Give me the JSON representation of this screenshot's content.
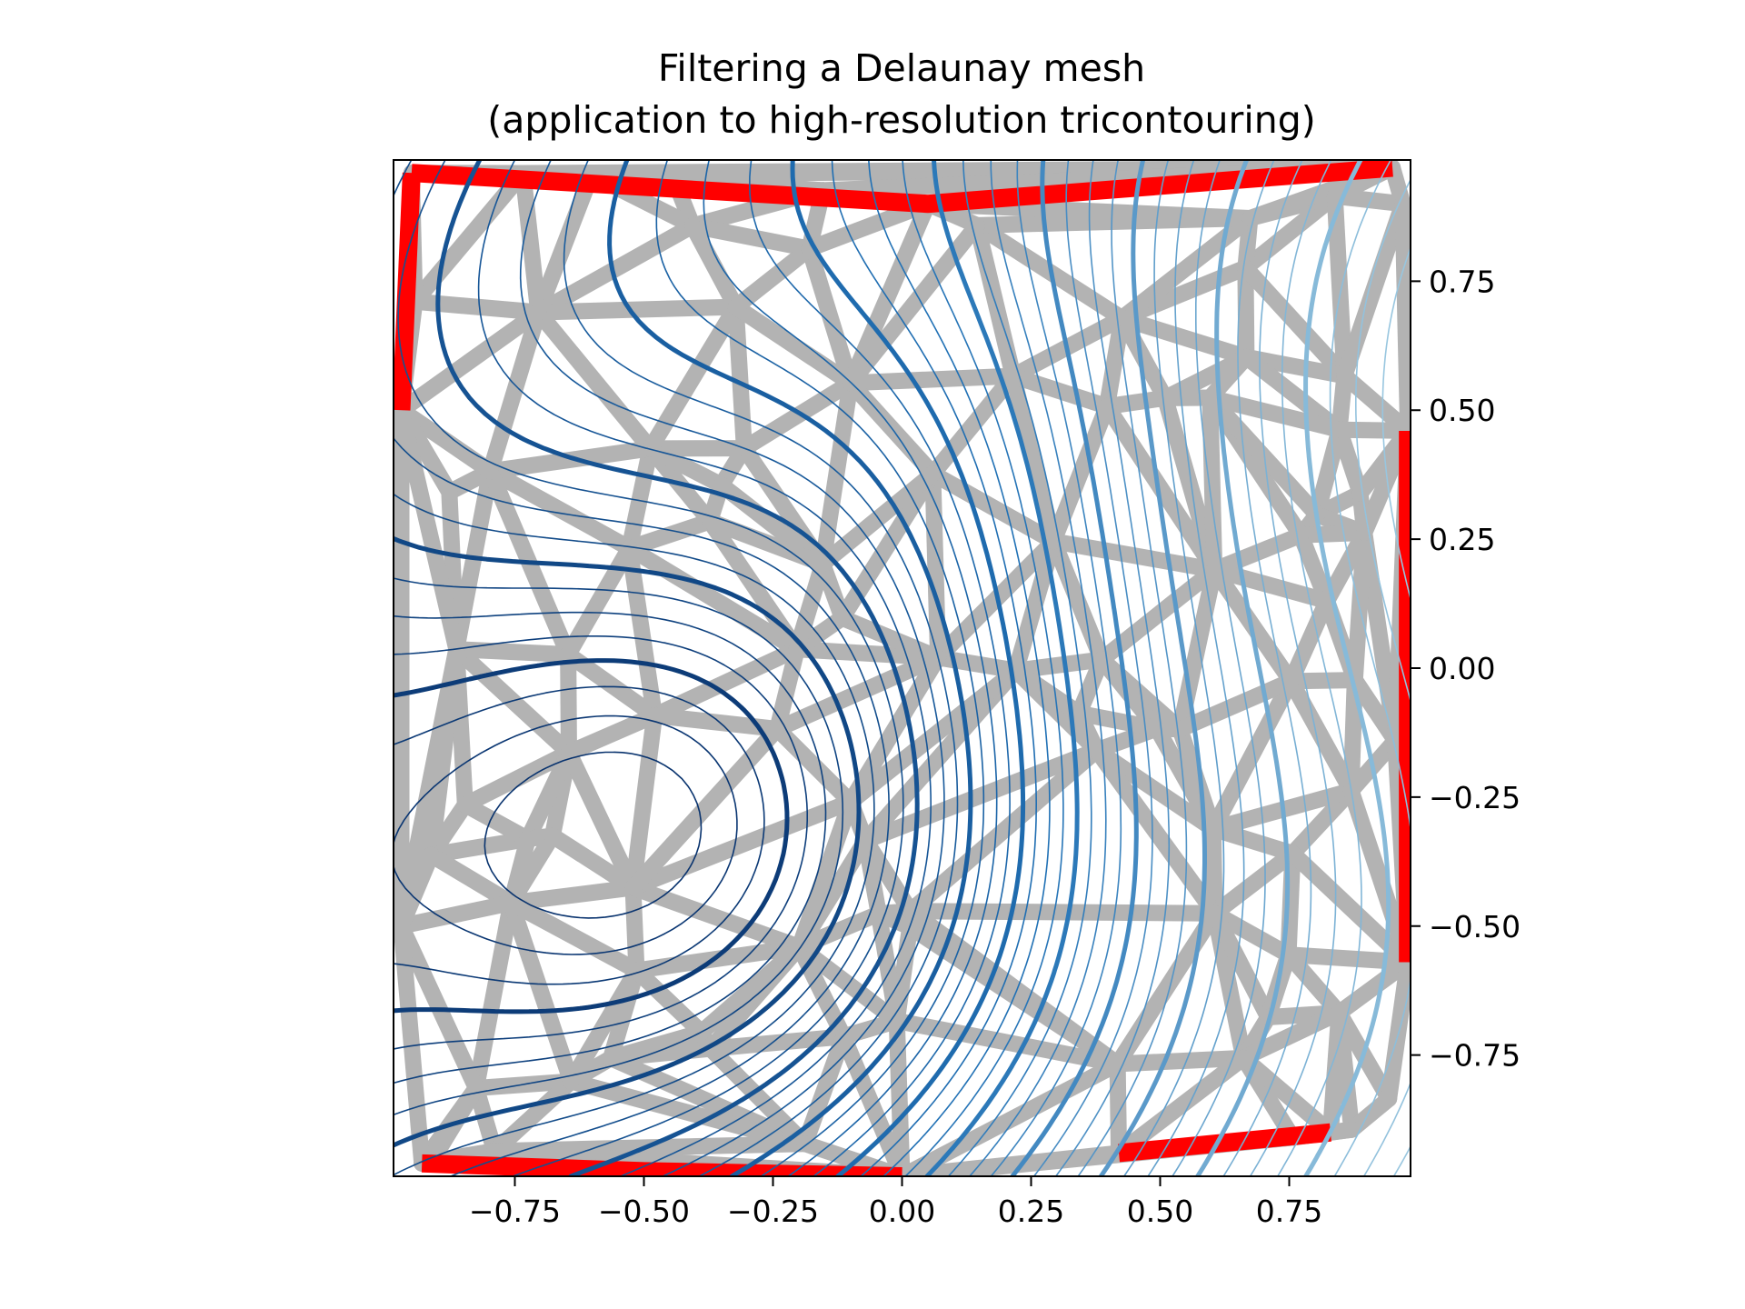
{
  "chart_data": {
    "type": "tricontour",
    "title": "Filtering a Delaunay mesh",
    "subtitle": "(application to high-resolution tricontouring)",
    "xlabel": "",
    "ylabel": "",
    "xlim": [
      -0.985,
      0.985
    ],
    "ylim": [
      -0.985,
      0.985
    ],
    "x_ticks": [
      -0.75,
      -0.5,
      -0.25,
      0.0,
      0.25,
      0.5,
      0.75
    ],
    "x_tick_labels": [
      "−0.75",
      "−0.50",
      "−0.25",
      "0.00",
      "0.25",
      "0.50",
      "0.75"
    ],
    "y_ticks": [
      0.75,
      0.5,
      0.25,
      0.0,
      -0.25,
      -0.5,
      -0.75
    ],
    "y_tick_labels": [
      "0.75",
      "0.50",
      "0.25",
      "0.00",
      "−0.25",
      "−0.50",
      "−0.75"
    ],
    "y_axis_side": "right",
    "grid": false,
    "legend": "none",
    "colors": {
      "masked_edges": "#ff0000",
      "mesh_edges": "#b3b3b3",
      "contour_dark": "#08306b",
      "contour_mid": "#2171b5",
      "contour_light": "#9ecae1"
    },
    "contour_levels": {
      "min": -1.0,
      "max": 1.0,
      "step": 0.025,
      "emphasized_every": 4,
      "colormap": "Blues"
    },
    "masked_boundary_segments": [
      {
        "name": "top-left boundary",
        "points": [
          [
            -0.95,
            0.96
          ],
          [
            0.05,
            0.9
          ],
          [
            0.95,
            0.97
          ]
        ]
      },
      {
        "name": "left-top boundary",
        "points": [
          [
            -0.95,
            0.96
          ],
          [
            -0.97,
            0.5
          ]
        ]
      },
      {
        "name": "right boundary",
        "points": [
          [
            0.98,
            0.46
          ],
          [
            0.98,
            -0.57
          ]
        ]
      },
      {
        "name": "bottom-left boundary",
        "points": [
          [
            -0.93,
            -0.96
          ],
          [
            -0.5,
            -0.975
          ],
          [
            0.0,
            -0.985
          ]
        ]
      },
      {
        "name": "bottom-right boundary",
        "points": [
          [
            0.42,
            -0.94
          ],
          [
            0.83,
            -0.9
          ]
        ]
      }
    ]
  }
}
